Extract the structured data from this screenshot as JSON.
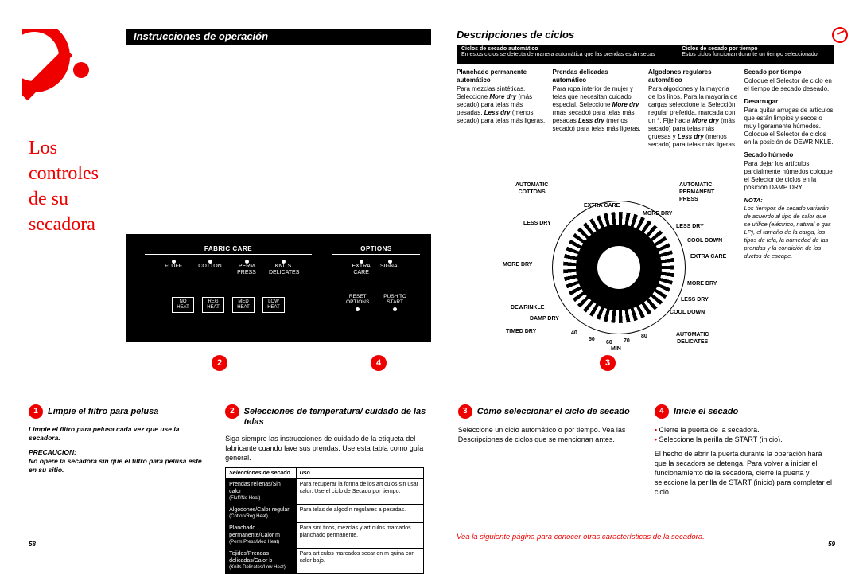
{
  "header": {
    "left_title": "Instrucciones de operación",
    "right_title": "Descripciones de ciclos",
    "auto_title": "Ciclos de secado automático",
    "auto_sub": "En estos ciclos se detecta de manera automática que las prendas están secas",
    "timed_title": "Ciclos de secado por tiempo",
    "timed_sub": "Estos ciclos funcionan durante un tiempo seleccionado"
  },
  "bigred": "Los\ncontroles\nde su\nsecadora",
  "cycles": {
    "c1": {
      "t": "Planchado permanente automático",
      "b": "Para mezclas sintéticas. Seleccione <b><i>More dry</i></b> (más secado) para telas más pesadas. <b><i>Less dry</i></b> (menos secado) para telas más ligeras."
    },
    "c2": {
      "t": "Prendas delicadas automático",
      "b": "Para ropa interior de mujer y telas que necesitan cuidado especial. Seleccione <b><i>More dry</i></b> (más secado) para telas más pesadas <b><i>Less dry</i></b> (menos secado) para telas más ligeras."
    },
    "c3": {
      "t": "Algodones regulares automático",
      "b": "Para algodones y la mayoría de los linos. Para la mayoría de cargas seleccione la Selección regular preferida, marcada con un *. Fije hacia <b><i>More dry</i></b> (más secado) para telas más gruesas y <b><i>Less dry</i></b> (menos secado) para telas más ligeras."
    },
    "c4a": {
      "t": "Secado por tiempo",
      "b": "Coloque el Selector de ciclo en el tiempo de secado deseado."
    },
    "c4b": {
      "t": "Desarrugar",
      "b": "Para quitar arrugas de artículos que están limpios y secos o muy ligeramente húmedos. Coloque el Selector de ciclos en la posición de DEWRINKLE."
    },
    "c4c": {
      "t": "Secado húmedo",
      "b": "Para dejar los artículos parcialmente húmedos coloque el Selector de ciclos en la posición DAMP DRY."
    },
    "note_t": "NOTA:",
    "note_b": "Los tiempos de secado variarán de acuerdo al tipo de calor que se utilice (eléctrico, natural o gas LP), el tamaño de la carga, los tipos de tela, la humedad de las prendas y la condición de los ductos de escape."
  },
  "panel": {
    "fabric_label": "FABRIC CARE",
    "fabric_cols": [
      "FLUFF",
      "COTTON",
      "PERM\nPRESS",
      "KNITS\nDELICATES"
    ],
    "heat": [
      "NO\nHEAT",
      "REG\nHEAT",
      "MED\nHEAT",
      "LOW\nHEAT"
    ],
    "options_label": "OPTIONS",
    "options_cols": [
      "EXTRA\nCARE",
      "SIGNAL"
    ],
    "reset": [
      "RESET\nOPTIONS",
      "PUSH TO\nSTART"
    ]
  },
  "dial": {
    "tl": "AUTOMATIC\nCOTTONS",
    "tr": "AUTOMATIC\nPERMANENT\nPRESS",
    "bl": "TIMED DRY",
    "br": "AUTOMATIC\nDELICATES",
    "labels": {
      "extra_care_t": "EXTRA CARE",
      "more_dry_t": "MORE DRY",
      "less_dry_t": "LESS DRY",
      "less_dry_r": "LESS DRY",
      "cool_down_r": "COOL DOWN",
      "extra_care_r": "EXTRA CARE",
      "more_dry_r": "MORE DRY",
      "less_dry_br": "LESS DRY",
      "cool_down_br": "COOL DOWN",
      "more_dry_l": "MORE DRY",
      "dewrinkle": "DEWRINKLE",
      "damp_dry": "DAMP DRY",
      "n40": "40",
      "n50": "50",
      "n60": "60",
      "n70": "70",
      "n80": "80",
      "min": "MIN"
    }
  },
  "under_nums": {
    "a": "2",
    "b": "4",
    "c": "3"
  },
  "steps": {
    "s1": {
      "n": "1",
      "title": "Limpie el filtro para pelusa",
      "limpie": "Limpie el filtro para pelusa cada vez que use la secadora.",
      "prec_h": "PRECAUCION:",
      "prec_b": "No opere la secadora sin que el filtro para pelusa esté en su sitio."
    },
    "s2": {
      "n": "2",
      "title": "Selecciones de temperatura/ cuidado de las telas",
      "intro": "Siga siempre las instrucciones de cuidado de la etiqueta del fabricante cuando lave sus prendas. Use esta tabla como guía general.",
      "th1": "Selecciones de secado",
      "th2": "Uso",
      "rows": [
        {
          "k": "Prendas rellenas/Sin calor",
          "ks": "(Fluff/No Heat)",
          "v": "Para recuperar la forma de los art culos sin usar calor. Use el ciclo de Secado por tiempo."
        },
        {
          "k": "Algodones/Calor regular",
          "ks": "(Cotton/Reg Heat)",
          "v": "Para telas de algod n regulares a pesadas."
        },
        {
          "k": "Planchado permanente/Calor m",
          "ks": "(Perm Press/Med Heat)",
          "v": "Para sint ticos, mezclas y art culos marcados planchado permanente."
        },
        {
          "k": "Tejidos/Prendas delicadas/Calor b",
          "ks": "(Knits Delicates/Low Heat)",
          "v": "Para art culos marcados secar en m quina con calor bajo."
        }
      ]
    },
    "s3": {
      "n": "3",
      "title": "Cómo seleccionar el ciclo de secado",
      "body": "Seleccione un ciclo automático o por tiempo. Vea las Descripciones de ciclos que se mencionan antes."
    },
    "s4": {
      "n": "4",
      "title": "Inicie el secado",
      "li1": "Cierre la puerta de la secadora.",
      "li2": "Seleccione la perilla de START (inicio).",
      "body": "El hecho de abrir la puerta durante la operación hará que la secadora se detenga. Para volver a iniciar el funcionamiento de la secadora, cierre la puerta y seleccione la perilla de START (inicio) para completar el ciclo."
    }
  },
  "footer": "Vea la siguiente página para conocer otras características de la secadora.",
  "pg_left": "58",
  "pg_right": "59"
}
